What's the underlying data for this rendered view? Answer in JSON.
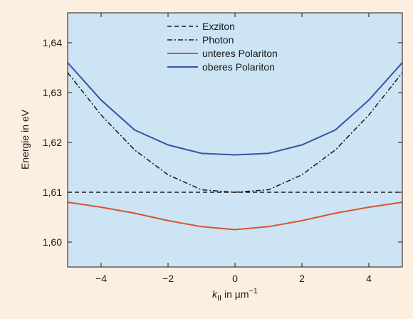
{
  "chart_data": {
    "type": "line",
    "title": "",
    "xlabel": {
      "italic": "k",
      "subscript": "II",
      "rest": " in µm",
      "superscript": "−1"
    },
    "ylabel": "Energie in eV",
    "xlim": [
      -5,
      5
    ],
    "ylim": [
      1.595,
      1.646
    ],
    "xticks": [
      -4,
      -2,
      0,
      2,
      4
    ],
    "xtick_labels": [
      "−4",
      "−2",
      "0",
      "2",
      "4"
    ],
    "yticks": [
      1.6,
      1.61,
      1.62,
      1.63,
      1.64
    ],
    "ytick_labels": [
      "1,60",
      "1,61",
      "1,62",
      "1,63",
      "1,64"
    ],
    "grid": false,
    "legend_position": "top-center",
    "series": [
      {
        "name": "Exziton",
        "color": "#1a1a1a",
        "dash": "dashed",
        "x": [
          -5,
          -4,
          -3,
          -2,
          -1,
          0,
          1,
          2,
          3,
          4,
          5
        ],
        "values": [
          1.61,
          1.61,
          1.61,
          1.61,
          1.61,
          1.61,
          1.61,
          1.61,
          1.61,
          1.61,
          1.61
        ]
      },
      {
        "name": "Photon",
        "color": "#1a1a1a",
        "dash": "dashdot",
        "x": [
          -5,
          -4,
          -3,
          -2,
          -1,
          0,
          1,
          2,
          3,
          4,
          5
        ],
        "values": [
          1.634,
          1.6255,
          1.6185,
          1.6135,
          1.6105,
          1.61,
          1.6105,
          1.6135,
          1.6185,
          1.6255,
          1.634
        ]
      },
      {
        "name": "unteres Polariton",
        "color": "#d9542b",
        "dash": "solid",
        "x": [
          -5,
          -4,
          -3,
          -2,
          -1,
          0,
          1,
          2,
          3,
          4,
          5
        ],
        "values": [
          1.608,
          1.607,
          1.6058,
          1.6043,
          1.6031,
          1.6025,
          1.6031,
          1.6043,
          1.6058,
          1.607,
          1.608
        ]
      },
      {
        "name": "oberes Polariton",
        "color": "#3f4fa3",
        "dash": "solid",
        "x": [
          -5,
          -4,
          -3,
          -2,
          -1,
          0,
          1,
          2,
          3,
          4,
          5
        ],
        "values": [
          1.636,
          1.6285,
          1.6225,
          1.6195,
          1.6178,
          1.6175,
          1.6178,
          1.6195,
          1.6225,
          1.6285,
          1.636
        ]
      }
    ]
  }
}
